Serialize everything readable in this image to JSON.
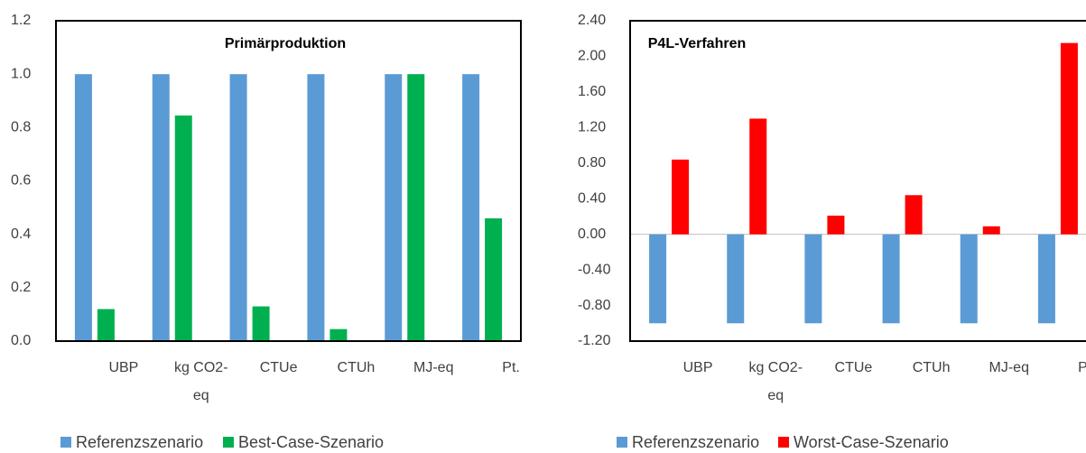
{
  "chart_data": [
    {
      "type": "bar",
      "title": "Primärproduktion",
      "categories": [
        "UBP",
        "kg CO2-eq",
        "CTUe",
        "CTUh",
        "MJ-eq",
        "Pt."
      ],
      "series": [
        {
          "name": "Referenzszenario",
          "color": "#5b9bd5",
          "values": [
            1.0,
            1.0,
            1.0,
            1.0,
            1.0,
            1.0
          ]
        },
        {
          "name": "Best-Case-Szenario",
          "color": "#00b050",
          "values": [
            0.12,
            0.845,
            0.13,
            0.045,
            1.0,
            0.46
          ]
        }
      ],
      "ylim": [
        0,
        1.2
      ],
      "yticks": [
        {
          "value": 0,
          "label": "0.0"
        },
        0.2,
        0.4,
        0.6,
        0.8,
        {
          "value": 1,
          "label": "1.0"
        },
        1.2
      ],
      "grid": false,
      "legend": "bottom"
    },
    {
      "type": "bar",
      "title": "P4L-Verfahren",
      "categories": [
        "UBP",
        "kg CO2-eq",
        "CTUe",
        "CTUh",
        "MJ-eq",
        "Pt."
      ],
      "series": [
        {
          "name": "Referenzszenario",
          "color": "#5b9bd5",
          "values": [
            -1.0,
            -1.0,
            -1.0,
            -1.0,
            -1.0,
            -1.0
          ]
        },
        {
          "name": "Worst-Case-Szenario",
          "color": "#ff0000",
          "values": [
            0.84,
            1.3,
            0.21,
            0.44,
            0.09,
            2.15
          ]
        }
      ],
      "ylim": [
        -1.2,
        2.4
      ],
      "yticks": [
        {
          "value": -1.2,
          "label": "-1.20"
        },
        {
          "value": -0.8,
          "label": "-0.80"
        },
        {
          "value": -0.4,
          "label": "-0.40"
        },
        {
          "value": 0,
          "label": "0.00"
        },
        {
          "value": 0.4,
          "label": "0.40"
        },
        {
          "value": 0.8,
          "label": "0.80"
        },
        {
          "value": 1.2,
          "label": "1.20"
        },
        {
          "value": 1.6,
          "label": "1.60"
        },
        {
          "value": 2.0,
          "label": "2.00"
        },
        {
          "value": 2.4,
          "label": "2.40"
        }
      ],
      "grid": false,
      "legend": "bottom"
    }
  ]
}
